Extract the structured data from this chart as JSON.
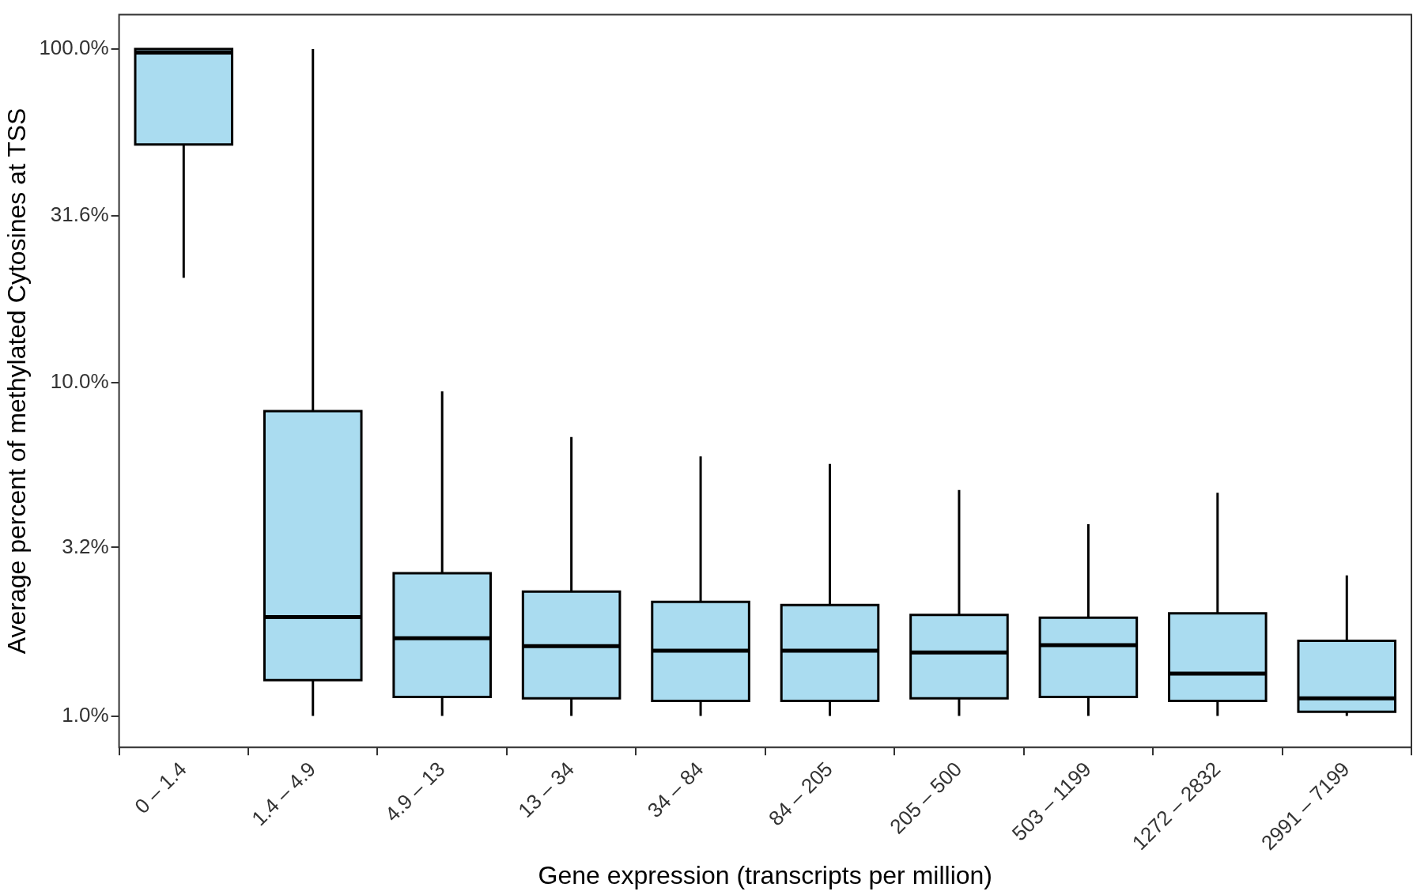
{
  "chart_data": {
    "type": "box",
    "xlabel": "Gene expression (transcripts per million)",
    "ylabel": "Average percent of methylated Cytosines at TSS",
    "categories": [
      "0 – 1.4",
      "1.4 – 4.9",
      "4.9 – 13",
      "13 – 34",
      "34 – 84",
      "84 – 205",
      "205 – 500",
      "503 – 1199",
      "1272 – 2832",
      "2991 – 7199"
    ],
    "color": "#aadcf0",
    "log": true,
    "grid": false,
    "legend": false,
    "ylim": [
      0.805,
      126.7
    ],
    "yticks": [
      {
        "value": 1,
        "label": "1.0%"
      },
      {
        "value": 3.2,
        "label": "3.2%"
      },
      {
        "value": 10,
        "label": "10.0%"
      },
      {
        "value": 31.6,
        "label": "31.6%"
      },
      {
        "value": 100,
        "label": "100.0%"
      }
    ],
    "boxes": [
      {
        "low": 20.6,
        "q1": 51.7,
        "median": 97.5,
        "q3": 100,
        "high": 100
      },
      {
        "low": 1,
        "q1": 1.28,
        "median": 1.98,
        "q3": 8.2,
        "high": 100
      },
      {
        "low": 1,
        "q1": 1.14,
        "median": 1.71,
        "q3": 2.68,
        "high": 9.4
      },
      {
        "low": 1,
        "q1": 1.13,
        "median": 1.62,
        "q3": 2.36,
        "high": 6.86
      },
      {
        "low": 1,
        "q1": 1.11,
        "median": 1.57,
        "q3": 2.2,
        "high": 6.0
      },
      {
        "low": 1,
        "q1": 1.11,
        "median": 1.57,
        "q3": 2.15,
        "high": 5.7
      },
      {
        "low": 1,
        "q1": 1.13,
        "median": 1.55,
        "q3": 2.01,
        "high": 4.76
      },
      {
        "low": 1,
        "q1": 1.14,
        "median": 1.63,
        "q3": 1.97,
        "high": 3.76
      },
      {
        "low": 1,
        "q1": 1.11,
        "median": 1.34,
        "q3": 2.03,
        "high": 4.67
      },
      {
        "low": 1,
        "q1": 1.03,
        "median": 1.13,
        "q3": 1.68,
        "high": 2.64
      }
    ]
  }
}
